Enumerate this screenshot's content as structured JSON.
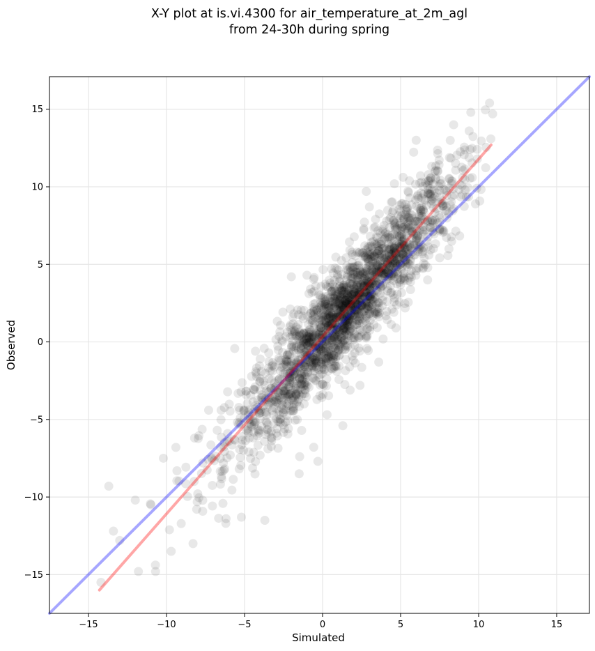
{
  "chart_data": {
    "type": "scatter",
    "title_lines": [
      "X-Y plot at is.vi.4300 for air_temperature_at_2m_agl",
      "from 24-30h during spring"
    ],
    "xlabel": "Simulated",
    "ylabel": "Observed",
    "xlim": [
      -17.5,
      17.1
    ],
    "ylim": [
      -17.5,
      17.1
    ],
    "xticks": [
      -15,
      -10,
      -5,
      0,
      5,
      10,
      15
    ],
    "yticks": [
      -15,
      -10,
      -5,
      0,
      5,
      10,
      15
    ],
    "grid": true,
    "point_color": "#000000",
    "point_alpha": 0.09,
    "point_count": 2200,
    "point_cloud": {
      "x_range": [
        -14.3,
        10.8
      ],
      "center": [
        1.5,
        2.0
      ],
      "trend_slope": 1.14,
      "spread": 1.6
    },
    "reference_lines": [
      {
        "label": "1:1 line",
        "color": "#0000ff",
        "alpha": 0.35,
        "x": [
          -17.5,
          17.1
        ],
        "y": [
          -17.5,
          17.1
        ]
      },
      {
        "label": "regression fit",
        "color": "#ff0000",
        "alpha": 0.35,
        "x": [
          -14.3,
          10.8
        ],
        "y": [
          -16.0,
          12.7
        ]
      }
    ],
    "sample_points": [
      [
        -13.7,
        -9.3
      ],
      [
        -13.4,
        -12.2
      ],
      [
        -14.2,
        -15.5
      ],
      [
        -12.0,
        -10.2
      ],
      [
        -11.8,
        -14.8
      ],
      [
        -10.7,
        -14.8
      ],
      [
        -10.2,
        -7.5
      ],
      [
        -9.7,
        -13.5
      ],
      [
        -8.3,
        -13.0
      ],
      [
        -6.2,
        -11.7
      ],
      [
        -5.2,
        -11.3
      ],
      [
        -3.7,
        -11.5
      ],
      [
        -4.7,
        -6.2
      ],
      [
        -1.5,
        -8.5
      ],
      [
        -0.3,
        -7.7
      ],
      [
        1.3,
        -5.4
      ],
      [
        2.4,
        -2.8
      ],
      [
        3.6,
        -1.3
      ],
      [
        4.7,
        0.9
      ],
      [
        5.7,
        4.2
      ],
      [
        6.0,
        13.0
      ],
      [
        3.0,
        8.7
      ],
      [
        2.8,
        9.7
      ],
      [
        8.1,
        6.0
      ],
      [
        9.8,
        8.9
      ],
      [
        10.7,
        15.4
      ],
      [
        10.9,
        14.7
      ],
      [
        9.5,
        14.8
      ],
      [
        8.4,
        14.0
      ],
      [
        7.2,
        11.0
      ],
      [
        -2.0,
        4.2
      ],
      [
        -1.0,
        4.3
      ],
      [
        0.5,
        3.8
      ],
      [
        -6.5,
        -4.4
      ],
      [
        -7.3,
        -4.4
      ],
      [
        -8.2,
        -6.2
      ],
      [
        -9.4,
        -6.8
      ],
      [
        -11.0,
        -10.5
      ],
      [
        -13.0,
        -12.8
      ],
      [
        -4.3,
        -0.6
      ]
    ]
  }
}
